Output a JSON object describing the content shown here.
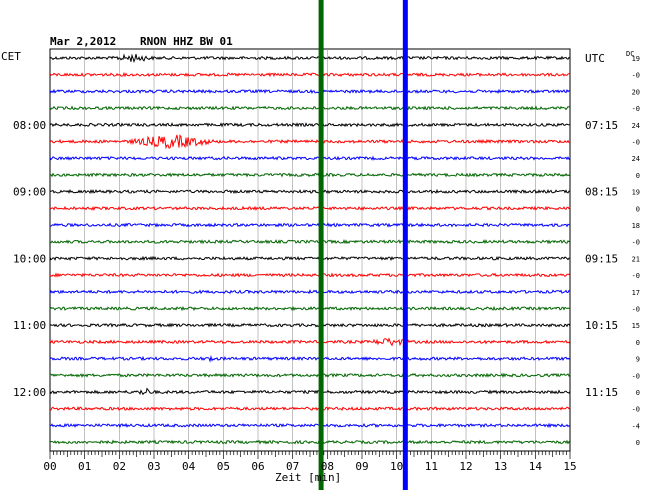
{
  "header": {
    "date": "Mar 2,2012",
    "station": "RNON HHZ BW 01",
    "left_zone": "CET",
    "right_zone": "UTC",
    "scale_label": "DC"
  },
  "chart_data": {
    "type": "line",
    "xlabel": "Zeit [min]",
    "xlim": [
      0,
      15
    ],
    "x_ticks": [
      "00",
      "01",
      "02",
      "03",
      "04",
      "05",
      "06",
      "07",
      "08",
      "09",
      "10",
      "11",
      "12",
      "13",
      "14",
      "15"
    ],
    "trace_colors": [
      "#000000",
      "#ff0000",
      "#0000ff",
      "#006600"
    ],
    "traces_per_hour": 4,
    "trace_count": 24,
    "left_time_labels": [
      {
        "trace": 4,
        "label": "08:00"
      },
      {
        "trace": 8,
        "label": "09:00"
      },
      {
        "trace": 12,
        "label": "10:00"
      },
      {
        "trace": 16,
        "label": "11:00"
      },
      {
        "trace": 20,
        "label": "12:00"
      }
    ],
    "right_time_labels": [
      {
        "trace": 0,
        "label": "UTC"
      },
      {
        "trace": 4,
        "label": "07:15"
      },
      {
        "trace": 8,
        "label": "08:15"
      },
      {
        "trace": 12,
        "label": "09:15"
      },
      {
        "trace": 16,
        "label": "10:15"
      },
      {
        "trace": 20,
        "label": "11:15"
      }
    ],
    "dc_offsets": [
      "19",
      "-0",
      "20",
      "-0",
      "24",
      "-0",
      "24",
      "0",
      "19",
      "0",
      "18",
      "-0",
      "21",
      "-0",
      "17",
      "-0",
      "15",
      "0",
      "9",
      "-0",
      "0",
      "-0",
      "-4",
      "0"
    ],
    "vertical_markers": [
      {
        "minute": 7.82,
        "color": "#006600"
      },
      {
        "minute": 10.25,
        "color": "#0000ff"
      }
    ],
    "events": [
      {
        "trace": 5,
        "start": 2.2,
        "end": 4.8,
        "amplitude": 6
      },
      {
        "trace": 0,
        "start": 1.8,
        "end": 3.0,
        "amplitude": 3
      },
      {
        "trace": 20,
        "start": 2.5,
        "end": 3.0,
        "amplitude": 3
      },
      {
        "trace": 17,
        "start": 9.2,
        "end": 10.4,
        "amplitude": 3
      },
      {
        "trace": 18,
        "start": 4.5,
        "end": 4.7,
        "amplitude": 5
      }
    ]
  }
}
